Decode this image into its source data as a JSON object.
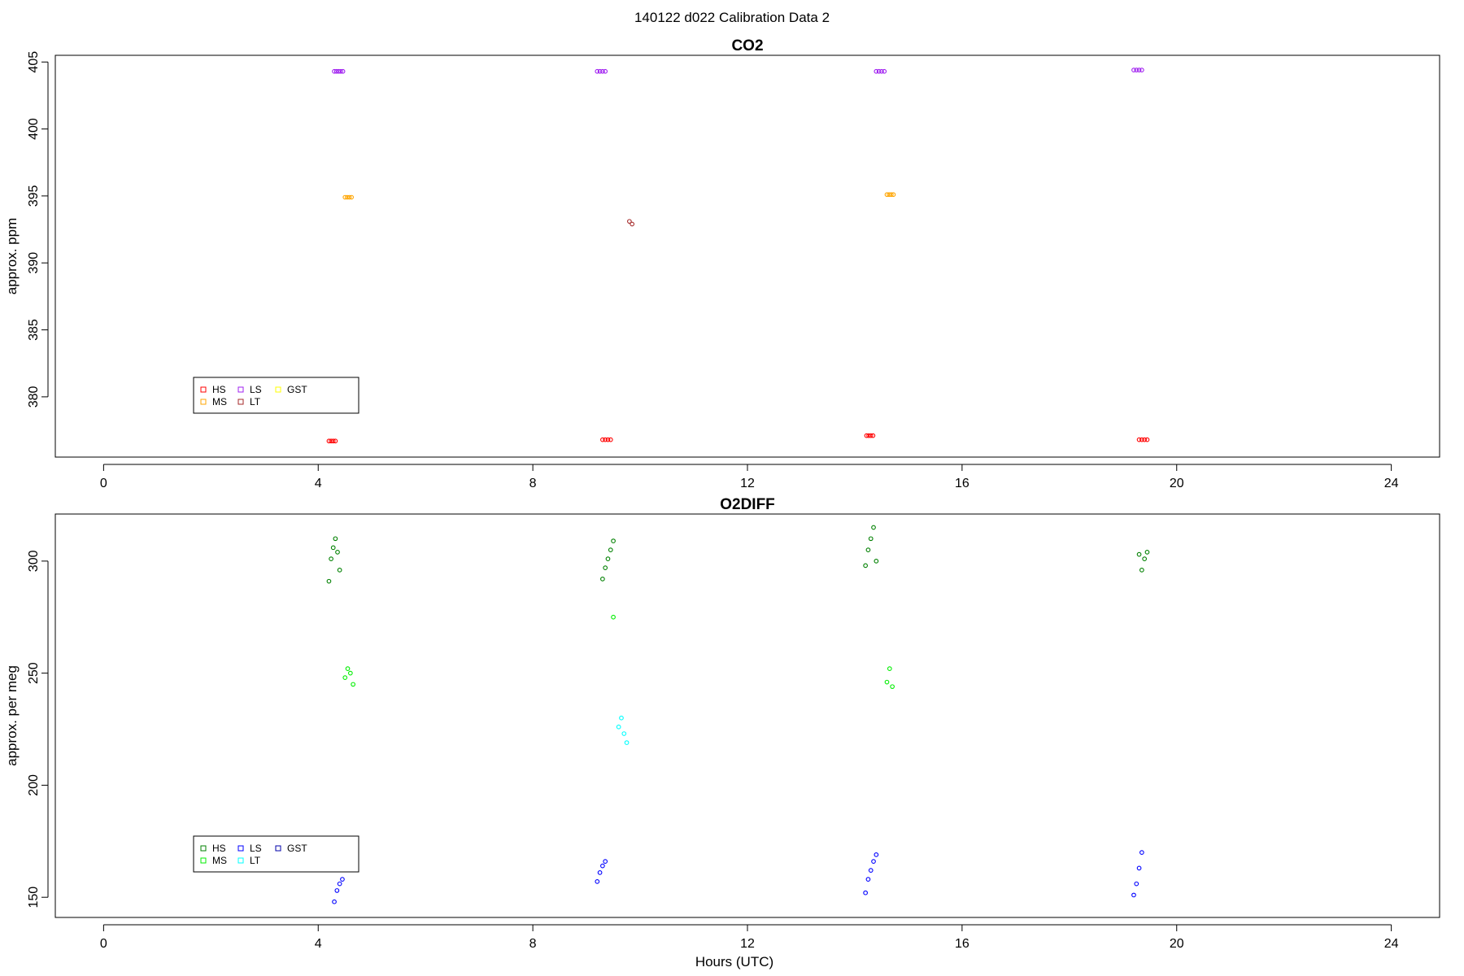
{
  "figure": {
    "suptitle": "140122   d022   Calibration Data 2",
    "xlabel": "Hours (UTC)"
  },
  "chart_data": [
    {
      "type": "scatter",
      "title": "CO2",
      "xlabel": "",
      "ylabel": "approx. ppm",
      "xlim": [
        -0.9,
        24.9
      ],
      "ylim": [
        375.5,
        405.5
      ],
      "xticks": [
        0,
        4,
        8,
        12,
        16,
        20,
        24
      ],
      "yticks": [
        380,
        385,
        390,
        395,
        400,
        405
      ],
      "grid": false,
      "legend_position": "bottom-left",
      "legend": [
        {
          "label": "HS",
          "color": "#ff0000"
        },
        {
          "label": "MS",
          "color": "#ffa500"
        },
        {
          "label": "LS",
          "color": "#a020f0"
        },
        {
          "label": "LT",
          "color": "#a52a2a"
        },
        {
          "label": "GST",
          "color": "#ffff00"
        }
      ],
      "series": [
        {
          "name": "HS",
          "color": "#ff0000",
          "style": "circle",
          "x": [
            4.2,
            4.24,
            4.28,
            4.32,
            9.3,
            9.35,
            9.4,
            9.45,
            14.22,
            14.26,
            14.3,
            14.34,
            19.3,
            19.35,
            19.4,
            19.45
          ],
          "y": [
            376.7,
            376.7,
            376.7,
            376.7,
            376.8,
            376.8,
            376.8,
            376.8,
            377.1,
            377.1,
            377.1,
            377.1,
            376.8,
            376.8,
            376.8,
            376.8
          ]
        },
        {
          "name": "MS",
          "color": "#ffa500",
          "style": "circle",
          "x": [
            4.5,
            4.54,
            4.58,
            4.62,
            14.6,
            14.64,
            14.68,
            14.72
          ],
          "y": [
            394.9,
            394.9,
            394.9,
            394.9,
            395.1,
            395.1,
            395.1,
            395.1
          ]
        },
        {
          "name": "LS",
          "color": "#a020f0",
          "style": "circle",
          "x": [
            4.3,
            4.34,
            4.38,
            4.42,
            4.46,
            9.2,
            9.25,
            9.3,
            9.35,
            14.4,
            14.45,
            14.5,
            14.55,
            19.2,
            19.25,
            19.3,
            19.35
          ],
          "y": [
            404.3,
            404.3,
            404.3,
            404.3,
            404.3,
            404.3,
            404.3,
            404.3,
            404.3,
            404.3,
            404.3,
            404.3,
            404.3,
            404.4,
            404.4,
            404.4,
            404.4
          ]
        },
        {
          "name": "LT",
          "color": "#a52a2a",
          "style": "circle",
          "x": [
            9.8,
            9.85
          ],
          "y": [
            393.1,
            392.9
          ]
        }
      ]
    },
    {
      "type": "scatter",
      "title": "O2DIFF",
      "xlabel": "Hours (UTC)",
      "ylabel": "approx. per meg",
      "xlim": [
        -0.9,
        24.9
      ],
      "ylim": [
        141,
        321
      ],
      "xticks": [
        0,
        4,
        8,
        12,
        16,
        20,
        24
      ],
      "yticks": [
        150,
        200,
        250,
        300
      ],
      "grid": false,
      "legend_position": "bottom-left",
      "legend": [
        {
          "label": "HS",
          "color": "#008000"
        },
        {
          "label": "MS",
          "color": "#00ee00"
        },
        {
          "label": "LS",
          "color": "#0000ff"
        },
        {
          "label": "LT",
          "color": "#00ffff"
        },
        {
          "label": "GST",
          "color": "#0000aa"
        }
      ],
      "series": [
        {
          "name": "HS",
          "color": "#008000",
          "style": "circle",
          "x": [
            4.2,
            4.24,
            4.28,
            4.32,
            4.36,
            4.4,
            9.3,
            9.35,
            9.4,
            9.45,
            9.5,
            14.2,
            14.25,
            14.3,
            14.35,
            14.4,
            19.3,
            19.35,
            19.4,
            19.45
          ],
          "y": [
            291,
            301,
            306,
            310,
            304,
            296,
            292,
            297,
            301,
            305,
            309,
            298,
            305,
            310,
            315,
            300,
            303,
            296,
            301,
            304
          ]
        },
        {
          "name": "MS",
          "color": "#00ee00",
          "style": "circle",
          "x": [
            4.5,
            4.55,
            4.6,
            4.65,
            9.5,
            14.6,
            14.65,
            14.7
          ],
          "y": [
            248,
            252,
            250,
            245,
            275,
            246,
            252,
            244
          ]
        },
        {
          "name": "LS",
          "color": "#0000ff",
          "style": "circle",
          "x": [
            4.3,
            4.35,
            4.4,
            4.45,
            9.2,
            9.25,
            9.3,
            9.35,
            14.2,
            14.25,
            14.3,
            14.35,
            14.4,
            19.2,
            19.25,
            19.3,
            19.35
          ],
          "y": [
            148,
            153,
            156,
            158,
            157,
            161,
            164,
            166,
            152,
            158,
            162,
            166,
            169,
            151,
            156,
            163,
            170
          ]
        },
        {
          "name": "LT",
          "color": "#00ffff",
          "style": "circle",
          "x": [
            9.6,
            9.65,
            9.7,
            9.75
          ],
          "y": [
            226,
            230,
            223,
            219
          ]
        }
      ]
    }
  ]
}
